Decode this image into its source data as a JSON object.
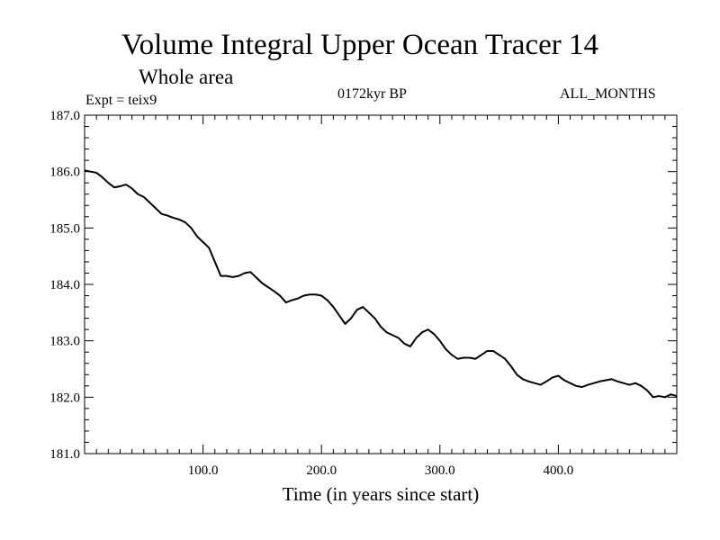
{
  "header": {
    "title": "Volume Integral Upper Ocean Tracer 14",
    "subtitle": "Whole area",
    "experiment": "Expt = teix9",
    "period": "0172kyr BP",
    "months": "ALL_MONTHS"
  },
  "chart_data": {
    "type": "line",
    "title": "Volume Integral Upper Ocean Tracer 14",
    "xlabel": "Time (in years since start)",
    "ylabel": "",
    "xlim": [
      0,
      500
    ],
    "ylim": [
      181.0,
      187.0
    ],
    "xticks": [
      100,
      200,
      300,
      400
    ],
    "xtick_labels": [
      "100.0",
      "200.0",
      "300.0",
      "400.0"
    ],
    "yticks": [
      181,
      182,
      183,
      184,
      185,
      186,
      187
    ],
    "ytick_labels": [
      "181.0",
      "182.0",
      "183.0",
      "184.0",
      "185.0",
      "186.0",
      "187.0"
    ],
    "grid": false,
    "series": [
      {
        "x": [
          0,
          5,
          10,
          15,
          20,
          25,
          30,
          35,
          40,
          45,
          50,
          55,
          60,
          65,
          70,
          75,
          80,
          85,
          90,
          95,
          100,
          105,
          110,
          115,
          120,
          125,
          130,
          135,
          140,
          145,
          150,
          155,
          160,
          165,
          170,
          175,
          180,
          185,
          190,
          195,
          200,
          205,
          210,
          215,
          220,
          225,
          230,
          235,
          240,
          245,
          250,
          255,
          260,
          265,
          270,
          275,
          280,
          285,
          290,
          295,
          300,
          305,
          310,
          315,
          320,
          325,
          330,
          335,
          340,
          345,
          350,
          355,
          360,
          365,
          370,
          375,
          380,
          385,
          390,
          395,
          400,
          405,
          410,
          415,
          420,
          425,
          430,
          435,
          440,
          445,
          450,
          455,
          460,
          465,
          470,
          475,
          480,
          485,
          490,
          495,
          500
        ],
        "y": [
          186.02,
          186.0,
          185.98,
          185.9,
          185.8,
          185.72,
          185.74,
          185.77,
          185.7,
          185.6,
          185.55,
          185.45,
          185.35,
          185.25,
          185.22,
          185.18,
          185.15,
          185.1,
          185.0,
          184.85,
          184.75,
          184.65,
          184.4,
          184.15,
          184.15,
          184.13,
          184.15,
          184.2,
          184.22,
          184.12,
          184.02,
          183.95,
          183.88,
          183.8,
          183.68,
          183.72,
          183.75,
          183.8,
          183.82,
          183.82,
          183.8,
          183.72,
          183.6,
          183.45,
          183.3,
          183.4,
          183.55,
          183.6,
          183.5,
          183.4,
          183.25,
          183.15,
          183.1,
          183.05,
          182.95,
          182.9,
          183.05,
          183.15,
          183.2,
          183.12,
          183.0,
          182.85,
          182.75,
          182.68,
          182.7,
          182.7,
          182.68,
          182.75,
          182.82,
          182.82,
          182.75,
          182.68,
          182.55,
          182.4,
          182.32,
          182.28,
          182.25,
          182.22,
          182.28,
          182.35,
          182.38,
          182.3,
          182.25,
          182.2,
          182.18,
          182.22,
          182.25,
          182.28,
          182.3,
          182.32,
          182.28,
          182.25,
          182.22,
          182.25,
          182.2,
          182.12,
          182.0,
          182.02,
          182.0,
          182.05,
          182.02
        ]
      }
    ]
  }
}
